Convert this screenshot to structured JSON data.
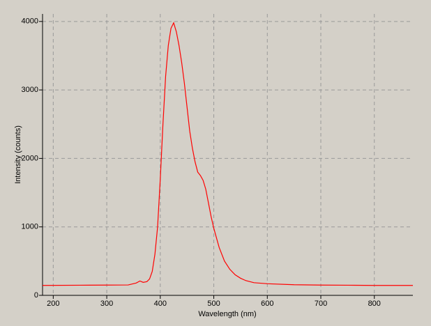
{
  "chart_data": {
    "type": "line",
    "x_label": "Wavelength (nm)",
    "y_label": "Intensity (counts)",
    "x": [
      180,
      250,
      300,
      340,
      355,
      362,
      368,
      375,
      380,
      385,
      390,
      395,
      400,
      405,
      410,
      415,
      420,
      425,
      430,
      435,
      440,
      445,
      450,
      455,
      460,
      465,
      470,
      475,
      480,
      485,
      490,
      495,
      500,
      510,
      520,
      530,
      540,
      550,
      560,
      575,
      600,
      650,
      700,
      750,
      800,
      872
    ],
    "series": [
      {
        "color": "#ff0000",
        "values": [
          145,
          148,
          150,
          152,
          180,
          210,
          190,
          200,
          240,
          350,
          600,
          1000,
          1700,
          2500,
          3200,
          3650,
          3900,
          3980,
          3850,
          3650,
          3400,
          3100,
          2750,
          2400,
          2150,
          1950,
          1800,
          1750,
          1680,
          1550,
          1350,
          1150,
          980,
          700,
          500,
          380,
          300,
          250,
          215,
          185,
          170,
          155,
          150,
          148,
          145,
          145
        ]
      }
    ],
    "xlim": [
      180,
      872
    ],
    "ylim": [
      0,
      4110
    ],
    "xticks": [
      200,
      300,
      400,
      500,
      600,
      700,
      800
    ],
    "yticks": [
      0,
      1000,
      2000,
      3000,
      4000
    ],
    "grid": true
  }
}
